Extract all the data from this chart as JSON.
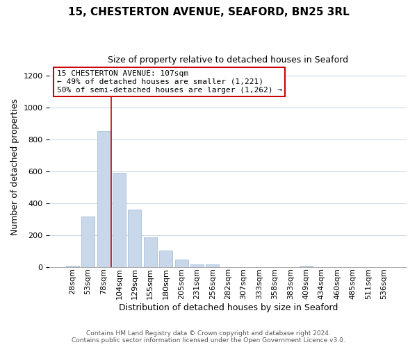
{
  "title": "15, CHESTERTON AVENUE, SEAFORD, BN25 3RL",
  "subtitle": "Size of property relative to detached houses in Seaford",
  "xlabel": "Distribution of detached houses by size in Seaford",
  "ylabel": "Number of detached properties",
  "bar_labels": [
    "28sqm",
    "53sqm",
    "78sqm",
    "104sqm",
    "129sqm",
    "155sqm",
    "180sqm",
    "205sqm",
    "231sqm",
    "256sqm",
    "282sqm",
    "307sqm",
    "333sqm",
    "358sqm",
    "383sqm",
    "409sqm",
    "434sqm",
    "460sqm",
    "485sqm",
    "511sqm",
    "536sqm"
  ],
  "bar_values": [
    10,
    318,
    855,
    592,
    360,
    185,
    103,
    46,
    18,
    18,
    0,
    0,
    0,
    0,
    0,
    10,
    0,
    0,
    0,
    0,
    0
  ],
  "bar_color": "#c8d8ea",
  "bar_edge_color": "#a8c0d8",
  "ylim_max": 1260,
  "yticks": [
    0,
    200,
    400,
    600,
    800,
    1000,
    1200
  ],
  "annotation_line1": "15 CHESTERTON AVENUE: 107sqm",
  "annotation_line2": "← 49% of detached houses are smaller (1,221)",
  "annotation_line3": "50% of semi-detached houses are larger (1,262) →",
  "annotation_box_facecolor": "#ffffff",
  "annotation_box_edgecolor": "#cc0000",
  "property_bar_index": 3,
  "vline_color": "#cc0000",
  "footer_line1": "Contains HM Land Registry data © Crown copyright and database right 2024.",
  "footer_line2": "Contains public sector information licensed under the Open Government Licence v3.0.",
  "background_color": "#ffffff",
  "grid_color": "#c8d4e0",
  "title_fontsize": 11,
  "subtitle_fontsize": 9,
  "axis_label_fontsize": 9,
  "tick_fontsize": 8,
  "annotation_fontsize": 8,
  "footer_fontsize": 6.5
}
